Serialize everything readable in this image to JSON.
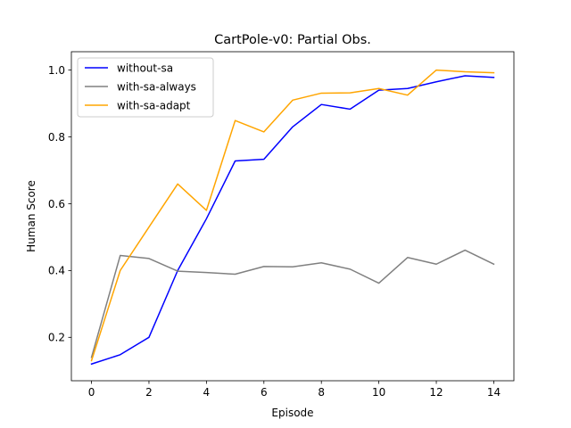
{
  "chart_data": {
    "type": "line",
    "title": "CartPole-v0: Partial Obs.",
    "xlabel": "Episode",
    "ylabel": "Human Score",
    "xlim": [
      -0.7,
      14.7
    ],
    "ylim": [
      0.07,
      1.055
    ],
    "xticks": [
      0,
      2,
      4,
      6,
      8,
      10,
      12,
      14
    ],
    "xtick_labels": [
      "0",
      "2",
      "4",
      "6",
      "8",
      "10",
      "12",
      "14"
    ],
    "yticks": [
      0.2,
      0.4,
      0.6,
      0.8,
      1.0
    ],
    "ytick_labels": [
      "0.2",
      "0.4",
      "0.6",
      "0.8",
      "1.0"
    ],
    "grid": false,
    "legend_position": "top-left",
    "x": [
      0,
      1,
      2,
      3,
      4,
      5,
      6,
      7,
      8,
      9,
      10,
      11,
      12,
      13,
      14
    ],
    "series": [
      {
        "name": "without-sa",
        "color": "#0000ff",
        "values": [
          0.12,
          0.148,
          0.2,
          0.4,
          0.555,
          0.728,
          0.733,
          0.83,
          0.897,
          0.883,
          0.94,
          0.945,
          0.965,
          0.983,
          0.978
        ]
      },
      {
        "name": "with-sa-always",
        "color": "#808080",
        "values": [
          0.14,
          0.445,
          0.436,
          0.398,
          0.394,
          0.389,
          0.412,
          0.411,
          0.423,
          0.404,
          0.362,
          0.439,
          0.419,
          0.461,
          0.419
        ]
      },
      {
        "name": "with-sa-adapt",
        "color": "#ffa500",
        "values": [
          0.13,
          0.4,
          0.53,
          0.659,
          0.58,
          0.849,
          0.815,
          0.91,
          0.931,
          0.932,
          0.945,
          0.925,
          1.0,
          0.995,
          0.992
        ]
      }
    ]
  }
}
